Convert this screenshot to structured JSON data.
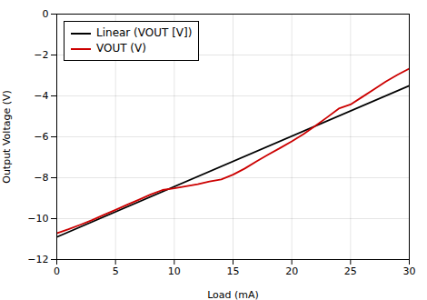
{
  "chart_data": {
    "type": "line",
    "xlabel": "Load (mA)",
    "ylabel": "Output Voltage (V)",
    "xlim": [
      0,
      30
    ],
    "ylim": [
      -12,
      0
    ],
    "xticks": [
      0,
      5,
      10,
      15,
      20,
      25,
      30
    ],
    "yticks": [
      0,
      -2,
      -4,
      -6,
      -8,
      -10,
      -12
    ],
    "grid": true,
    "legend": "upper left",
    "series": [
      {
        "name": "Linear (VOUT [V])",
        "color": "#000000",
        "x": [
          0,
          30
        ],
        "values": [
          -10.9,
          -3.5
        ]
      },
      {
        "name": "VOUT (V)",
        "color": "#cc0000",
        "x": [
          0,
          1,
          2,
          3,
          4,
          5,
          6,
          7,
          8,
          9,
          10,
          11,
          12,
          13,
          14,
          15,
          16,
          17,
          18,
          19,
          20,
          21,
          22,
          23,
          24,
          25,
          26,
          27,
          28,
          29,
          30
        ],
        "values": [
          -10.72,
          -10.52,
          -10.3,
          -10.07,
          -9.82,
          -9.57,
          -9.32,
          -9.07,
          -8.82,
          -8.6,
          -8.52,
          -8.42,
          -8.32,
          -8.18,
          -8.08,
          -7.85,
          -7.55,
          -7.2,
          -6.87,
          -6.55,
          -6.22,
          -5.87,
          -5.47,
          -5.05,
          -4.62,
          -4.42,
          -4.05,
          -3.68,
          -3.3,
          -2.97,
          -2.67
        ]
      }
    ]
  }
}
